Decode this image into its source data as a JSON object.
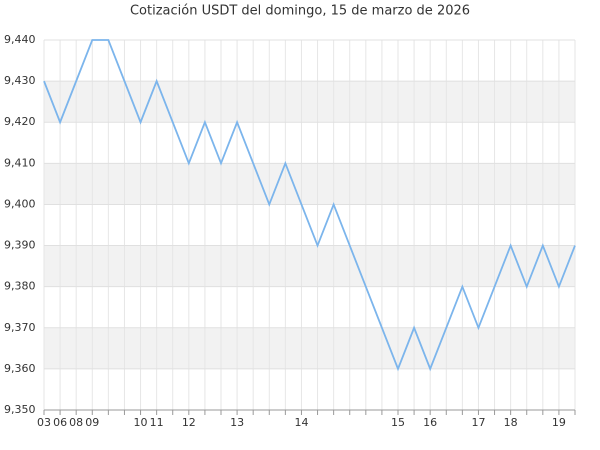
{
  "chart_data": {
    "type": "line",
    "title": "Cotización USDT del domingo, 15 de marzo de 2026",
    "categories": [
      "03",
      "06",
      "08",
      "09",
      null,
      null,
      "10",
      "11",
      null,
      "12",
      null,
      null,
      "13",
      null,
      null,
      null,
      "14",
      null,
      null,
      null,
      null,
      null,
      "15",
      null,
      "16",
      null,
      null,
      "17",
      null,
      "18",
      null,
      null,
      "19",
      null
    ],
    "series": [
      {
        "color": "#7cb5ec",
        "values": [
          9430,
          9420,
          9430,
          9440,
          9440,
          9430,
          9420,
          9430,
          9420,
          9410,
          9420,
          9410,
          9420,
          9410,
          9400,
          9410,
          9400,
          9390,
          9400,
          9390,
          9380,
          9370,
          9360,
          9370,
          9360,
          9370,
          9380,
          9370,
          9380,
          9390,
          9380,
          9390,
          9380,
          9390
        ]
      }
    ],
    "ylim": [
      9350,
      9440
    ],
    "yticks": [
      {
        "value": 9350,
        "label": "9,350"
      },
      {
        "value": 9360,
        "label": "9,360"
      },
      {
        "value": 9370,
        "label": "9,370"
      },
      {
        "value": 9380,
        "label": "9,380"
      },
      {
        "value": 9390,
        "label": "9,390"
      },
      {
        "value": 9400,
        "label": "9,400"
      },
      {
        "value": 9410,
        "label": "9,410"
      },
      {
        "value": 9420,
        "label": "9,420"
      },
      {
        "value": 9430,
        "label": "9,430"
      },
      {
        "value": 9440,
        "label": "9,440"
      }
    ],
    "grid": true
  }
}
